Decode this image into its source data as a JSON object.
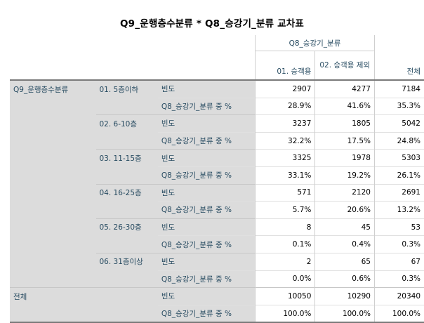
{
  "title": "Q9_운행층수분류 * Q8_승강기_분류 교차표",
  "header": {
    "col_group_label": "Q8_승강기_분류",
    "col1": "01. 승객용",
    "col2": "02. 승객용 제외",
    "total_col": "전체"
  },
  "row_var_label": "Q9_운행층수분류",
  "stat_labels": {
    "count": "빈도",
    "pct": "Q8_승강기_분류 중 %"
  },
  "groups": [
    {
      "label": "01. 5층이하",
      "count": [
        "2907",
        "4277",
        "7184"
      ],
      "pct": [
        "28.9%",
        "41.6%",
        "35.3%"
      ]
    },
    {
      "label": "02. 6-10층",
      "count": [
        "3237",
        "1805",
        "5042"
      ],
      "pct": [
        "32.2%",
        "17.5%",
        "24.8%"
      ]
    },
    {
      "label": "03. 11-15층",
      "count": [
        "3325",
        "1978",
        "5303"
      ],
      "pct": [
        "33.1%",
        "19.2%",
        "26.1%"
      ]
    },
    {
      "label": "04. 16-25층",
      "count": [
        "571",
        "2120",
        "2691"
      ],
      "pct": [
        "5.7%",
        "20.6%",
        "13.2%"
      ]
    },
    {
      "label": "05. 26-30층",
      "count": [
        "8",
        "45",
        "53"
      ],
      "pct": [
        "0.1%",
        "0.4%",
        "0.3%"
      ]
    },
    {
      "label": "06. 31층이상",
      "count": [
        "2",
        "65",
        "67"
      ],
      "pct": [
        "0.0%",
        "0.6%",
        "0.3%"
      ]
    }
  ],
  "total": {
    "label": "전체",
    "count": [
      "10050",
      "10290",
      "20340"
    ],
    "pct": [
      "100.0%",
      "100.0%",
      "100.0%"
    ]
  }
}
